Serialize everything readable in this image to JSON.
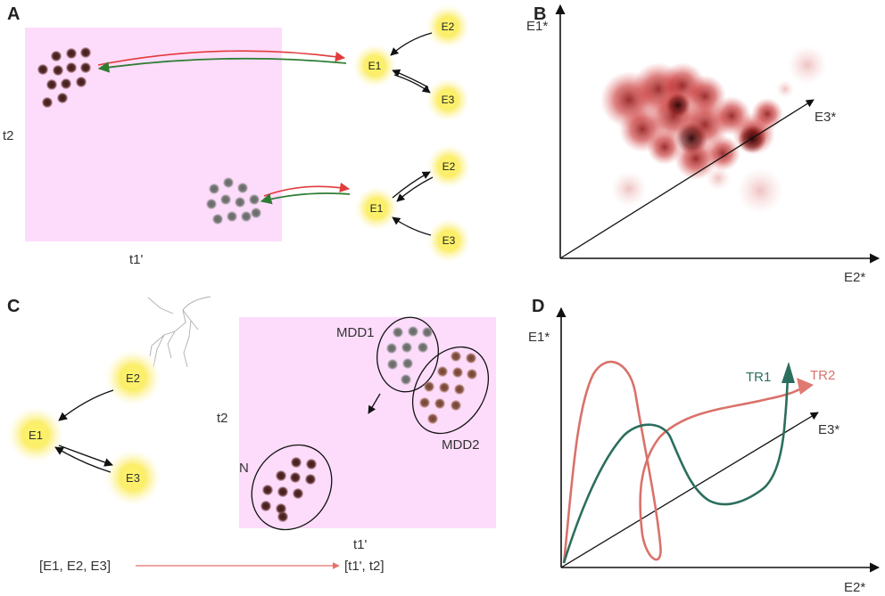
{
  "colors": {
    "pink_box": "#fddcfb",
    "node_yellow": "#fbee6b",
    "dot_dark": "#5a2e2e",
    "dot_grey": "#7a7a7a",
    "dot_brown": "#8b5a4a",
    "arrow_red": "#e23b3b",
    "arrow_green": "#2e7d32",
    "traj_green": "#2c6e5e",
    "traj_salmon": "#d9726a",
    "cloud_red": "#b01515"
  },
  "panels": {
    "a": {
      "letter": "A",
      "ylabel": "t2",
      "xlabel": "t1'",
      "top_network": {
        "center": "E1",
        "upper": "E2",
        "lower": "E3"
      },
      "bottom_network": {
        "center": "E1",
        "upper": "E2",
        "lower": "E3"
      }
    },
    "b": {
      "letter": "B",
      "axis_y": "E1*",
      "axis_diag": "E3*",
      "axis_x": "E2*"
    },
    "c": {
      "letter": "C",
      "network": {
        "left": "E1",
        "top": "E2",
        "bottom": "E3"
      },
      "ylabel": "t2",
      "xlabel": "t1'",
      "clusters": {
        "mdd1": "MDD1",
        "mdd2": "MDD2",
        "n": "N"
      },
      "mapping_from": "[E1, E2, E3]",
      "mapping_to": "[t1', t2]"
    },
    "d": {
      "letter": "D",
      "axis_y": "E1*",
      "axis_diag": "E3*",
      "axis_x": "E2*",
      "traj1": "TR1",
      "traj2": "TR2"
    }
  }
}
